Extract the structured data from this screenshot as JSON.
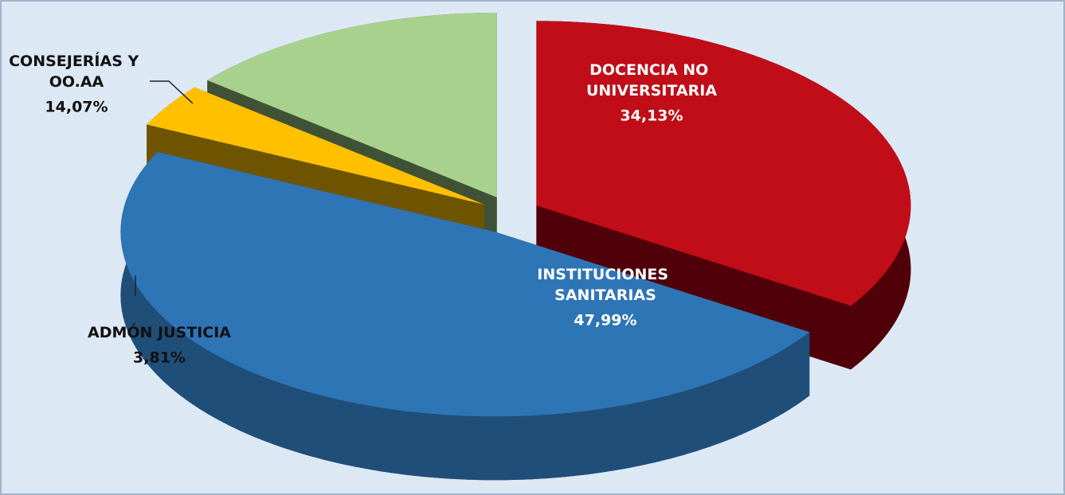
{
  "chart_data": {
    "type": "pie3d",
    "categories": [
      "DOCENCIA NO UNIVERSITARIA",
      "INSTITUCIONES SANITARIAS",
      "ADMÓN JUSTICIA",
      "CONSEJERÍAS Y OO.AA"
    ],
    "values": [
      34.13,
      47.99,
      3.81,
      14.07
    ],
    "value_labels": [
      "34,13%",
      "47,99%",
      "3,81%",
      "14,07%"
    ],
    "colors": [
      "#c00d18",
      "#2e75b6",
      "#ffc000",
      "#a9d18e"
    ],
    "side_colors": [
      "#500008",
      "#1f4e79",
      "#6e5400",
      "#3f5236"
    ]
  }
}
